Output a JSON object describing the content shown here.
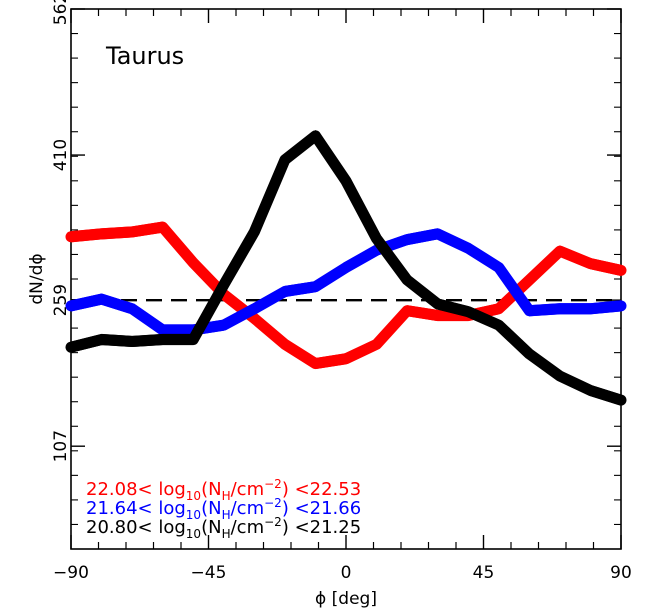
{
  "chart_data": {
    "type": "line",
    "panel_label": "Taurus",
    "xlabel": "ϕ [deg]",
    "ylabel": "dN/dϕ",
    "xlim": [
      -90,
      90
    ],
    "ylim": [
      0,
      562
    ],
    "x_ticks": [
      "-90",
      "-45",
      "0",
      "45",
      "90"
    ],
    "y_ticks": [
      "107",
      "259",
      "410",
      "562"
    ],
    "x_tick_values": [
      -90,
      -45,
      0,
      45,
      90
    ],
    "y_tick_values": [
      107,
      259,
      410,
      562
    ],
    "reference_line": {
      "y": 259,
      "style": "dashed",
      "color": "#000000"
    },
    "x": [
      -90,
      -80,
      -70,
      -60,
      -50,
      -40,
      -30,
      -20,
      -10,
      0,
      10,
      20,
      30,
      40,
      50,
      60,
      70,
      80,
      90
    ],
    "series": [
      {
        "color": "#ff0000",
        "legend": {
          "low": "22.08<",
          "mid": " log",
          "sub": "10",
          "paren_open": "(N",
          "h_sub": "H",
          "unit": "/cm",
          "sup": "−2",
          "paren_close": ")",
          "high": " <22.53"
        },
        "values": [
          325,
          328,
          330,
          335,
          298,
          265,
          240,
          213,
          193,
          198,
          213,
          248,
          243,
          243,
          250,
          280,
          310,
          297,
          290
        ]
      },
      {
        "color": "#0000ff",
        "legend": {
          "low": "21.64<",
          "mid": " log",
          "sub": "10",
          "paren_open": "(N",
          "h_sub": "H",
          "unit": "/cm",
          "sup": "−2",
          "paren_close": ")",
          "high": " <21.66"
        },
        "values": [
          253,
          260,
          250,
          228,
          228,
          233,
          250,
          268,
          273,
          293,
          311,
          322,
          328,
          313,
          293,
          248,
          250,
          250,
          253
        ]
      },
      {
        "color": "#000000",
        "legend": {
          "low": "20.80<",
          "mid": " log",
          "sub": "10",
          "paren_open": "(N",
          "h_sub": "H",
          "unit": "/cm",
          "sup": "−2",
          "paren_close": ")",
          "high": " <21.25"
        },
        "values": [
          210,
          218,
          216,
          218,
          218,
          275,
          330,
          405,
          430,
          383,
          323,
          280,
          255,
          247,
          233,
          203,
          180,
          165,
          155
        ]
      }
    ]
  }
}
